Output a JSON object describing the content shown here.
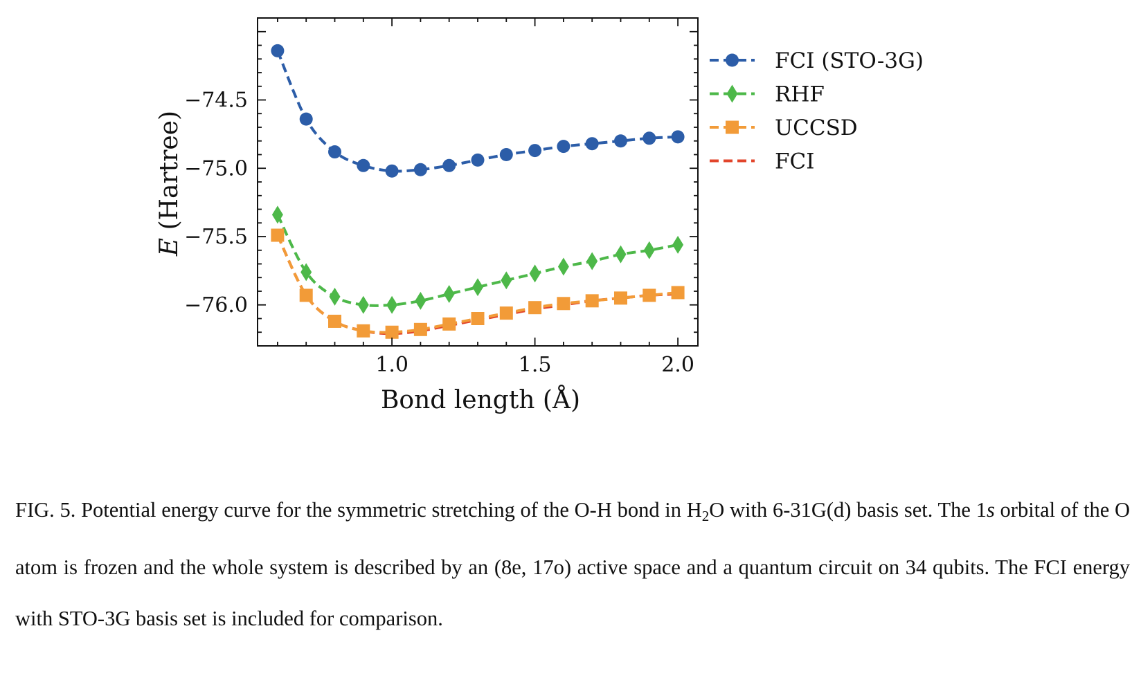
{
  "chart_data": {
    "type": "line",
    "xlabel": "Bond length (Å)",
    "ylabel_var": "E",
    "ylabel_unit": "(Hartree)",
    "xlim": [
      0.53,
      2.07
    ],
    "ylim": [
      -76.3,
      -73.9
    ],
    "xticks": [
      1.0,
      1.5,
      2.0
    ],
    "xtick_labels": [
      "1.0",
      "1.5",
      "2.0"
    ],
    "yticks": [
      -74.5,
      -75.0,
      -75.5,
      -76.0
    ],
    "ytick_labels": [
      "−74.5",
      "−75.0",
      "−75.5",
      "−76.0"
    ],
    "x": [
      0.6,
      0.7,
      0.8,
      0.9,
      1.0,
      1.1,
      1.2,
      1.3,
      1.4,
      1.5,
      1.6,
      1.7,
      1.8,
      1.9,
      2.0
    ],
    "legend_position": "outside-right",
    "series": [
      {
        "name": "FCI (STO-3G)",
        "color": "#2c5da8",
        "marker": "circle",
        "values": [
          -74.14,
          -74.64,
          -74.88,
          -74.98,
          -75.02,
          -75.01,
          -74.98,
          -74.94,
          -74.9,
          -74.87,
          -74.84,
          -74.82,
          -74.8,
          -74.78,
          -74.77
        ]
      },
      {
        "name": "RHF",
        "color": "#4db849",
        "marker": "diamond",
        "values": [
          -75.34,
          -75.76,
          -75.94,
          -76.0,
          -76.0,
          -75.97,
          -75.92,
          -75.87,
          -75.82,
          -75.77,
          -75.72,
          -75.68,
          -75.63,
          -75.6,
          -75.56
        ]
      },
      {
        "name": "UCCSD",
        "color": "#f29b38",
        "marker": "square",
        "values": [
          -75.49,
          -75.93,
          -76.12,
          -76.19,
          -76.2,
          -76.18,
          -76.14,
          -76.1,
          -76.06,
          -76.02,
          -75.99,
          -75.97,
          -75.95,
          -75.93,
          -75.91
        ]
      },
      {
        "name": "FCI",
        "color": "#e2452b",
        "marker": "none",
        "values": [
          -75.49,
          -75.93,
          -76.12,
          -76.19,
          -76.21,
          -76.19,
          -76.15,
          -76.11,
          -76.07,
          -76.03,
          -76.0,
          -75.97,
          -75.95,
          -75.93,
          -75.92
        ]
      }
    ]
  },
  "caption": {
    "prefix": "FIG. 5. Potential energy curve for the symmetric stretching of the O-H bond in H",
    "sub": "2",
    "part2": "O with 6-31G(d) basis set. The 1",
    "italic_s": "s",
    "part3": " orbital of the O atom is frozen and the whole system is described by an (8e, 17o) active space and a quantum circuit on 34 qubits. The FCI energy with STO-3G basis set is included for comparison."
  }
}
